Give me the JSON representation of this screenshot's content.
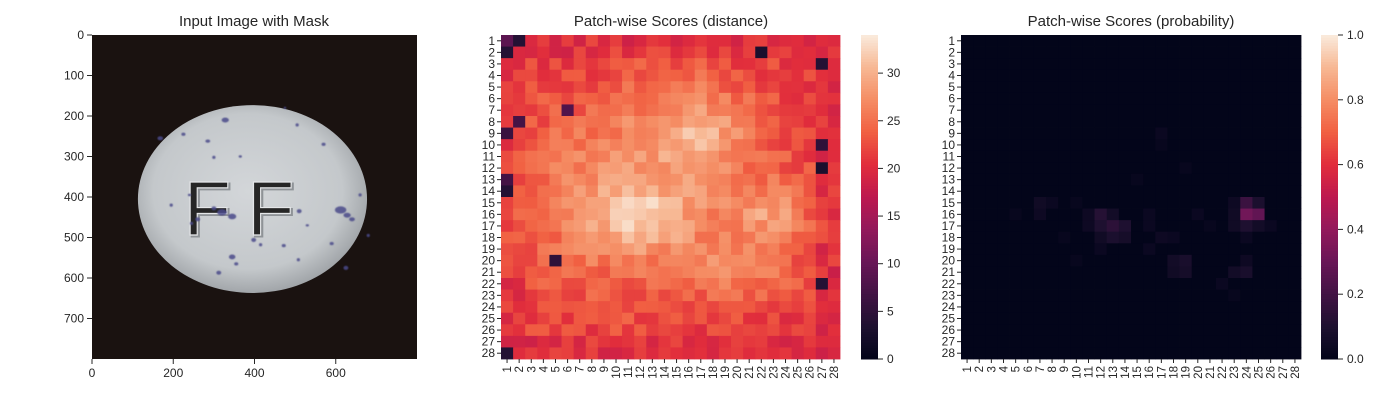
{
  "chart_data": [
    {
      "type": "image",
      "title": "Input Image with Mask",
      "x_ticks": [
        0,
        200,
        400,
        600
      ],
      "y_ticks": [
        0,
        100,
        200,
        300,
        400,
        500,
        600,
        700
      ],
      "xlim": [
        0,
        800
      ],
      "ylim": [
        800,
        0
      ],
      "image": {
        "background_color": "#1a1210",
        "object": "oval white pill embossed with letters and blue speckles",
        "embossed_text": "FF",
        "pill_center": [
          395,
          405
        ],
        "pill_radius": [
          282,
          232
        ],
        "pill_color": "#c4c8cb",
        "speckle_color": "#4a4a8a",
        "speckles": [
          [
            168,
            255,
            7,
            5
          ],
          [
            225,
            245,
            5,
            4
          ],
          [
            285,
            262,
            6,
            4
          ],
          [
            300,
            302,
            4,
            4
          ],
          [
            328,
            210,
            9,
            6
          ],
          [
            320,
            438,
            12,
            8
          ],
          [
            345,
            448,
            10,
            7
          ],
          [
            300,
            428,
            6,
            5
          ],
          [
            260,
            455,
            6,
            5
          ],
          [
            240,
            395,
            4,
            3
          ],
          [
            245,
            465,
            4,
            4
          ],
          [
            345,
            548,
            8,
            6
          ],
          [
            355,
            565,
            5,
            4
          ],
          [
            312,
            587,
            6,
            5
          ],
          [
            398,
            506,
            6,
            5
          ],
          [
            415,
            518,
            4,
            4
          ],
          [
            472,
            520,
            5,
            4
          ],
          [
            508,
            555,
            4,
            4
          ],
          [
            510,
            435,
            6,
            5
          ],
          [
            612,
            432,
            14,
            9
          ],
          [
            628,
            445,
            9,
            6
          ],
          [
            590,
            515,
            5,
            4
          ],
          [
            625,
            575,
            6,
            5
          ],
          [
            640,
            455,
            7,
            5
          ],
          [
            570,
            270,
            5,
            4
          ],
          [
            505,
            222,
            4,
            4
          ],
          [
            660,
            395,
            4,
            4
          ],
          [
            475,
            180,
            3,
            3
          ],
          [
            195,
            420,
            4,
            4
          ],
          [
            365,
            300,
            4,
            3
          ],
          [
            680,
            495,
            4,
            4
          ],
          [
            530,
            470,
            4,
            3
          ]
        ]
      }
    },
    {
      "type": "heatmap",
      "title": "Patch-wise Scores (distance)",
      "rows": 28,
      "cols": 28,
      "x_tick_labels": [
        "1",
        "2",
        "3",
        "4",
        "5",
        "6",
        "7",
        "8",
        "9",
        "10",
        "11",
        "12",
        "13",
        "14",
        "15",
        "16",
        "17",
        "18",
        "19",
        "20",
        "21",
        "22",
        "23",
        "24",
        "25",
        "26",
        "27",
        "28"
      ],
      "y_tick_labels": [
        "1",
        "2",
        "3",
        "4",
        "5",
        "6",
        "7",
        "8",
        "9",
        "10",
        "11",
        "12",
        "13",
        "14",
        "15",
        "16",
        "17",
        "18",
        "19",
        "20",
        "21",
        "22",
        "23",
        "24",
        "25",
        "26",
        "27",
        "28"
      ],
      "colormap": "rocket",
      "vmin": 0,
      "vmax": 34,
      "colorbar_ticks": [
        0,
        5,
        10,
        15,
        20,
        25,
        30
      ],
      "value_model": {
        "base": 21,
        "blobs": [
          [
            14.5,
            11.5,
            6.0,
            7.5,
            7.0
          ],
          [
            8.0,
            17.0,
            3.0,
            4.0,
            4.0
          ],
          [
            16.5,
            12.0,
            1.8,
            2.5,
            5.0
          ],
          [
            16.0,
            23.0,
            1.8,
            2.0,
            5.5
          ],
          [
            20.5,
            19.5,
            2.0,
            2.5,
            3.0
          ],
          [
            21.0,
            23.0,
            1.3,
            1.5,
            3.0
          ],
          [
            9.0,
            17.0,
            1.5,
            2.0,
            2.0
          ]
        ],
        "low_cells": [
          [
            1,
            1,
            9
          ],
          [
            1,
            2,
            4
          ],
          [
            2,
            1,
            4
          ],
          [
            7,
            6,
            8
          ],
          [
            8,
            2,
            7
          ],
          [
            9,
            1,
            6
          ],
          [
            13,
            1,
            7
          ],
          [
            14,
            1,
            4
          ],
          [
            10,
            27,
            5
          ],
          [
            3,
            27,
            4
          ],
          [
            20,
            5,
            5
          ],
          [
            22,
            27,
            4
          ],
          [
            28,
            1,
            4
          ],
          [
            2,
            22,
            3
          ],
          [
            12,
            27,
            3
          ]
        ]
      }
    },
    {
      "type": "heatmap",
      "title": "Patch-wise Scores (probability)",
      "rows": 28,
      "cols": 28,
      "x_tick_labels": [
        "1",
        "2",
        "3",
        "4",
        "5",
        "6",
        "7",
        "8",
        "9",
        "10",
        "11",
        "12",
        "13",
        "14",
        "15",
        "16",
        "17",
        "18",
        "19",
        "20",
        "21",
        "22",
        "23",
        "24",
        "25",
        "26",
        "27",
        "28"
      ],
      "y_tick_labels": [
        "1",
        "2",
        "3",
        "4",
        "5",
        "6",
        "7",
        "8",
        "9",
        "10",
        "11",
        "12",
        "13",
        "14",
        "15",
        "16",
        "17",
        "18",
        "19",
        "20",
        "21",
        "22",
        "23",
        "24",
        "25",
        "26",
        "27",
        "28"
      ],
      "colormap": "rocket",
      "vmin": 0,
      "vmax": 1,
      "colorbar_ticks": [
        0.0,
        0.2,
        0.4,
        0.6,
        0.8,
        1.0
      ],
      "colorbar_tick_labels": [
        "0.0",
        "0.2",
        "0.4",
        "0.6",
        "0.8",
        "1.0"
      ],
      "base": 0.0,
      "cells": [
        [
          16,
          24,
          0.32
        ],
        [
          16,
          25,
          0.28
        ],
        [
          15,
          24,
          0.18
        ],
        [
          15,
          25,
          0.09
        ],
        [
          17,
          24,
          0.1
        ],
        [
          17,
          25,
          0.06
        ],
        [
          16,
          23,
          0.05
        ],
        [
          15,
          23,
          0.04
        ],
        [
          17,
          23,
          0.05
        ],
        [
          16,
          12,
          0.12
        ],
        [
          17,
          12,
          0.1
        ],
        [
          17,
          13,
          0.14
        ],
        [
          17,
          14,
          0.1
        ],
        [
          18,
          13,
          0.09
        ],
        [
          18,
          14,
          0.07
        ],
        [
          16,
          13,
          0.06
        ],
        [
          18,
          12,
          0.05
        ],
        [
          16,
          11,
          0.04
        ],
        [
          17,
          11,
          0.04
        ],
        [
          15,
          7,
          0.05
        ],
        [
          16,
          7,
          0.04
        ],
        [
          15,
          8,
          0.03
        ],
        [
          20,
          18,
          0.06
        ],
        [
          20,
          19,
          0.08
        ],
        [
          21,
          19,
          0.07
        ],
        [
          21,
          18,
          0.05
        ],
        [
          21,
          24,
          0.08
        ],
        [
          21,
          23,
          0.06
        ],
        [
          20,
          24,
          0.04
        ],
        [
          18,
          17,
          0.04
        ],
        [
          18,
          18,
          0.03
        ],
        [
          19,
          16,
          0.03
        ],
        [
          9,
          17,
          0.03
        ],
        [
          10,
          17,
          0.02
        ],
        [
          12,
          19,
          0.02
        ],
        [
          13,
          15,
          0.02
        ],
        [
          16,
          16,
          0.03
        ],
        [
          17,
          16,
          0.03
        ],
        [
          16,
          20,
          0.03
        ],
        [
          17,
          21,
          0.02
        ],
        [
          18,
          9,
          0.02
        ],
        [
          16,
          5,
          0.02
        ],
        [
          22,
          22,
          0.03
        ],
        [
          23,
          23,
          0.02
        ],
        [
          19,
          12,
          0.03
        ],
        [
          20,
          10,
          0.02
        ],
        [
          15,
          10,
          0.02
        ],
        [
          17,
          26,
          0.03
        ],
        [
          18,
          24,
          0.03
        ]
      ]
    }
  ]
}
